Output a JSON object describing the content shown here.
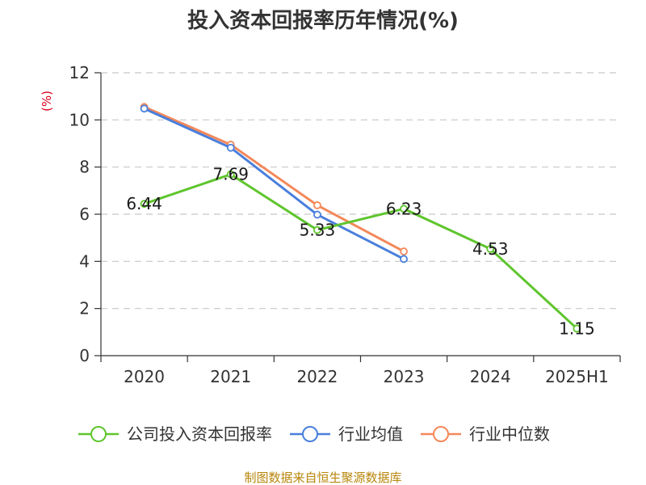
{
  "chart_data": {
    "type": "line",
    "title": "投入资本回报率历年情况(%)",
    "ylabel": "(%)",
    "categories": [
      "2020",
      "2021",
      "2022",
      "2023",
      "2024",
      "2025H1"
    ],
    "ylim": [
      0,
      12
    ],
    "yticks": [
      "0",
      "2",
      "4",
      "6",
      "8",
      "10",
      "12"
    ],
    "grid": "horizontal-dashed",
    "legend_position": "bottom",
    "series": [
      {
        "name": "行业中位数",
        "color": "#f4885a",
        "values": [
          10.55,
          8.95,
          6.38,
          4.42,
          null,
          null
        ],
        "show_labels": false
      },
      {
        "name": "行业均值",
        "color": "#4a7fdc",
        "values": [
          10.48,
          8.82,
          5.98,
          4.1,
          null,
          null
        ],
        "show_labels": false
      },
      {
        "name": "公司投入资本回报率",
        "color": "#5fc52e",
        "values": [
          6.44,
          7.69,
          5.33,
          6.23,
          4.53,
          1.15
        ],
        "labels": [
          "6.44",
          "7.69",
          "5.33",
          "6.23",
          "4.53",
          "1.15"
        ],
        "show_labels": true
      }
    ],
    "legend_order": [
      "公司投入资本回报率",
      "行业均值",
      "行业中位数"
    ]
  },
  "footer": {
    "source": "制图数据来自恒生聚源数据库"
  }
}
